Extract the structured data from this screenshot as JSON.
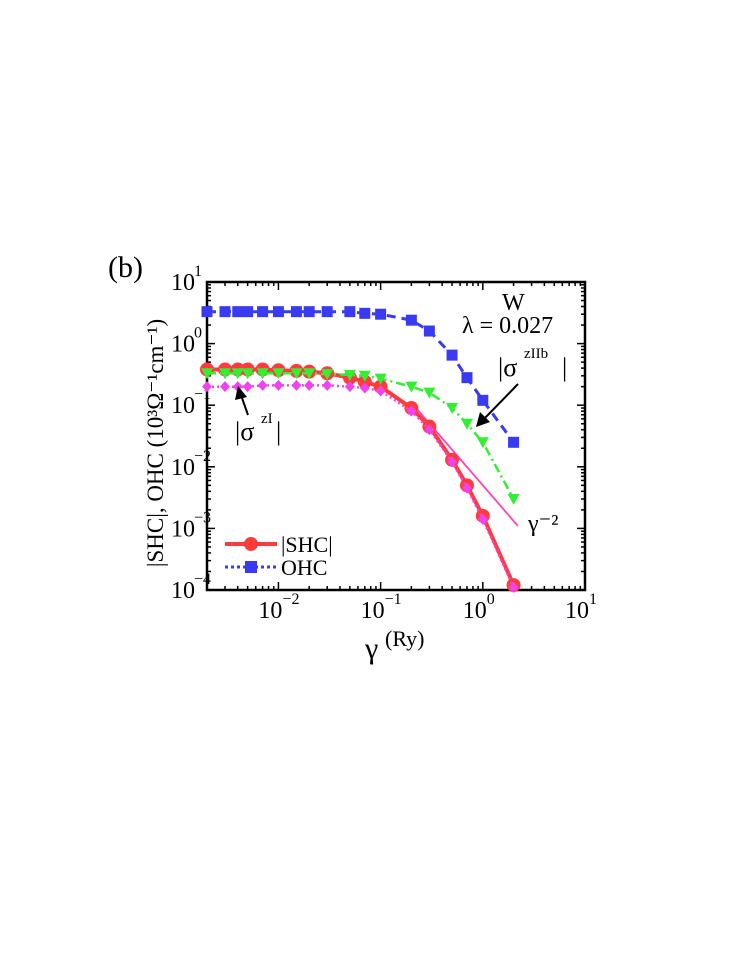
{
  "panel_label": "(b)",
  "chart_data": {
    "type": "line",
    "xscale": "log",
    "yscale": "log",
    "xlim": [
      0.002,
      10
    ],
    "ylim": [
      0.0001,
      10
    ],
    "xlabel_symbol": "γ",
    "xlabel_unit": "(Ry)",
    "ylabel": "|SHC|, OHC (10³Ω⁻¹cm⁻¹)",
    "x_ticks": [
      {
        "value": 0.01,
        "mantissa": "10",
        "exp": "−2"
      },
      {
        "value": 0.1,
        "mantissa": "10",
        "exp": "−1"
      },
      {
        "value": 1,
        "mantissa": "10",
        "exp": "0"
      },
      {
        "value": 10,
        "mantissa": "10",
        "exp": "1"
      }
    ],
    "y_ticks": [
      {
        "value": 0.0001,
        "mantissa": "10",
        "exp": "−4"
      },
      {
        "value": 0.001,
        "mantissa": "10",
        "exp": "−3"
      },
      {
        "value": 0.01,
        "mantissa": "10",
        "exp": "−2"
      },
      {
        "value": 0.1,
        "mantissa": "10",
        "exp": "−1"
      },
      {
        "value": 1,
        "mantissa": "10",
        "exp": "0"
      },
      {
        "value": 10,
        "mantissa": "10",
        "exp": "1"
      }
    ],
    "series": [
      {
        "name": "OHC",
        "color": "#3a3af0",
        "marker": "square",
        "dash": "dash",
        "x": [
          0.002,
          0.003,
          0.004,
          0.005,
          0.007,
          0.01,
          0.015,
          0.02,
          0.03,
          0.05,
          0.07,
          0.1,
          0.2,
          0.3,
          0.5,
          0.7,
          1.0,
          2.0
        ],
        "y": [
          3.3,
          3.3,
          3.3,
          3.3,
          3.3,
          3.3,
          3.3,
          3.3,
          3.3,
          3.3,
          3.1,
          3.0,
          2.4,
          1.6,
          0.65,
          0.28,
          0.12,
          0.025
        ]
      },
      {
        "name": "|SHC|",
        "color": "#ff3b3b",
        "marker": "circle",
        "dash": "solid",
        "x": [
          0.002,
          0.003,
          0.004,
          0.005,
          0.007,
          0.01,
          0.015,
          0.02,
          0.03,
          0.05,
          0.07,
          0.1,
          0.2,
          0.3,
          0.5,
          0.7,
          1.0,
          2.0
        ],
        "y": [
          0.38,
          0.38,
          0.38,
          0.38,
          0.38,
          0.37,
          0.36,
          0.35,
          0.33,
          0.28,
          0.24,
          0.2,
          0.09,
          0.045,
          0.013,
          0.005,
          0.0016,
          0.00012
        ]
      },
      {
        "name": "|σzIIb|",
        "color": "#33ee33",
        "marker": "triangle-down",
        "dash": "dashdot",
        "x": [
          0.002,
          0.003,
          0.004,
          0.005,
          0.007,
          0.01,
          0.015,
          0.02,
          0.03,
          0.05,
          0.07,
          0.1,
          0.2,
          0.3,
          0.5,
          0.7,
          1.0,
          2.0
        ],
        "y": [
          0.33,
          0.33,
          0.33,
          0.33,
          0.33,
          0.33,
          0.33,
          0.33,
          0.32,
          0.31,
          0.3,
          0.27,
          0.2,
          0.16,
          0.09,
          0.05,
          0.025,
          0.003
        ]
      },
      {
        "name": "|σzI|",
        "color": "#ee44ee",
        "marker": "diamond",
        "dash": "dot",
        "x": [
          0.002,
          0.003,
          0.004,
          0.005,
          0.007,
          0.01,
          0.015,
          0.02,
          0.03,
          0.05,
          0.07,
          0.1,
          0.2,
          0.3,
          0.5,
          0.7,
          1.0,
          2.0
        ],
        "y": [
          0.2,
          0.2,
          0.2,
          0.2,
          0.21,
          0.21,
          0.21,
          0.21,
          0.21,
          0.2,
          0.19,
          0.17,
          0.08,
          0.04,
          0.012,
          0.0045,
          0.0014,
          0.00011
        ]
      }
    ],
    "reference_line": {
      "label": "γ⁻²",
      "color": "#ff44bb",
      "x": [
        0.2,
        2.2
      ],
      "y": [
        0.11,
        0.0011
      ]
    },
    "annotations": {
      "metal": "W",
      "lambda": "λ = 0.027",
      "sigma_zIIb_prefix": "|σ",
      "sigma_zIIb_sup": "zIIb",
      "sigma_zI_prefix": "|σ",
      "sigma_zI_sup": "zI",
      "bar": "|"
    },
    "legend": {
      "placement": "bottom-left",
      "entries": [
        {
          "label": "|SHC|",
          "series": "|SHC|"
        },
        {
          "label": "OHC",
          "series": "OHC"
        }
      ]
    }
  }
}
